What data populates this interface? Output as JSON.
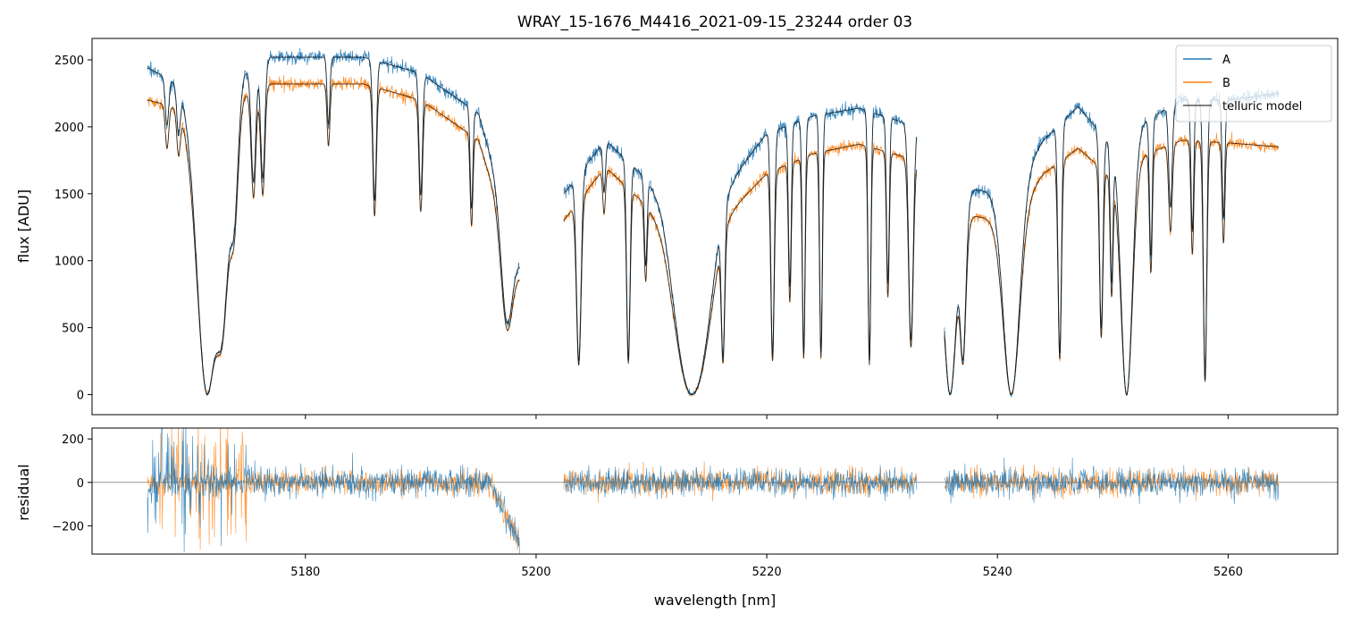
{
  "chart_data": [
    {
      "type": "line",
      "panel": "top",
      "title": "WRAY_15-1676_M4416_2021-09-15_23244  order 03",
      "xlabel": "",
      "ylabel": "flux [ADU]",
      "xlim": [
        5161.5,
        5269.5
      ],
      "ylim": [
        -150,
        2660
      ],
      "yticks": [
        0,
        500,
        1000,
        1500,
        2000,
        2500
      ],
      "xticks": [
        5180,
        5200,
        5220,
        5240,
        5260
      ],
      "legend": {
        "location": "top-right",
        "entries": [
          "A",
          "B",
          "telluric model"
        ]
      },
      "segments": [
        [
          5166.3,
          5198.6
        ],
        [
          5202.4,
          5233.0
        ],
        [
          5235.4,
          5264.4
        ]
      ],
      "continuum": {
        "A": [
          [
            5166.3,
            2440
          ],
          [
            5170,
            2280
          ],
          [
            5175,
            2420
          ],
          [
            5177,
            2520
          ],
          [
            5185,
            2520
          ],
          [
            5190,
            2400
          ],
          [
            5195,
            2100
          ],
          [
            5198.6,
            1000
          ],
          [
            5202.4,
            1500
          ],
          [
            5206,
            1900
          ],
          [
            5211,
            1500
          ],
          [
            5214,
            800
          ],
          [
            5216,
            1500
          ],
          [
            5220,
            1950
          ],
          [
            5224,
            2080
          ],
          [
            5228,
            2140
          ],
          [
            5233,
            2000
          ],
          [
            5235.4,
            1200
          ],
          [
            5238,
            1530
          ],
          [
            5241,
            1500
          ],
          [
            5244,
            1900
          ],
          [
            5247,
            2150
          ],
          [
            5249.5,
            1900
          ],
          [
            5253,
            2050
          ],
          [
            5256,
            2200
          ],
          [
            5260,
            2200
          ],
          [
            5264.4,
            2250
          ]
        ],
        "B": [
          [
            5166.3,
            2200
          ],
          [
            5170,
            2120
          ],
          [
            5175,
            2250
          ],
          [
            5177,
            2320
          ],
          [
            5185,
            2320
          ],
          [
            5190,
            2200
          ],
          [
            5195,
            1900
          ],
          [
            5198.6,
            900
          ],
          [
            5202.4,
            1300
          ],
          [
            5206,
            1700
          ],
          [
            5211,
            1300
          ],
          [
            5214,
            700
          ],
          [
            5216,
            1300
          ],
          [
            5220,
            1650
          ],
          [
            5224,
            1800
          ],
          [
            5228,
            1870
          ],
          [
            5233,
            1750
          ],
          [
            5235.4,
            1100
          ],
          [
            5238,
            1330
          ],
          [
            5241,
            1300
          ],
          [
            5244,
            1650
          ],
          [
            5247,
            1840
          ],
          [
            5249.5,
            1650
          ],
          [
            5253,
            1800
          ],
          [
            5256,
            1900
          ],
          [
            5260,
            1880
          ],
          [
            5264.4,
            1850
          ]
        ]
      },
      "absorption": [
        {
          "center": 5171.5,
          "width": 0.9,
          "depth": 1.05
        },
        {
          "center": 5172.7,
          "width": 0.6,
          "depth": 0.75
        },
        {
          "center": 5173.8,
          "width": 0.35,
          "depth": 0.4
        },
        {
          "center": 5168.0,
          "width": 0.15,
          "depth": 0.15
        },
        {
          "center": 5169.0,
          "width": 0.15,
          "depth": 0.15
        },
        {
          "center": 5175.5,
          "width": 0.2,
          "depth": 0.35
        },
        {
          "center": 5176.3,
          "width": 0.18,
          "depth": 0.35
        },
        {
          "center": 5182.0,
          "width": 0.12,
          "depth": 0.2
        },
        {
          "center": 5186.0,
          "width": 0.15,
          "depth": 0.42
        },
        {
          "center": 5190.0,
          "width": 0.15,
          "depth": 0.38
        },
        {
          "center": 5194.4,
          "width": 0.12,
          "depth": 0.35
        },
        {
          "center": 5197.5,
          "width": 0.5,
          "depth": 0.6
        },
        {
          "center": 5203.7,
          "width": 0.2,
          "depth": 0.85
        },
        {
          "center": 5205.9,
          "width": 0.12,
          "depth": 0.2
        },
        {
          "center": 5208.0,
          "width": 0.15,
          "depth": 0.85
        },
        {
          "center": 5209.5,
          "width": 0.12,
          "depth": 0.4
        },
        {
          "center": 5213.5,
          "width": 1.3,
          "depth": 1.1
        },
        {
          "center": 5216.2,
          "width": 0.15,
          "depth": 0.8
        },
        {
          "center": 5220.5,
          "width": 0.15,
          "depth": 0.85
        },
        {
          "center": 5222.0,
          "width": 0.12,
          "depth": 0.6
        },
        {
          "center": 5223.2,
          "width": 0.12,
          "depth": 0.85
        },
        {
          "center": 5224.7,
          "width": 0.12,
          "depth": 0.85
        },
        {
          "center": 5228.9,
          "width": 0.12,
          "depth": 0.88
        },
        {
          "center": 5230.5,
          "width": 0.12,
          "depth": 0.6
        },
        {
          "center": 5232.5,
          "width": 0.2,
          "depth": 0.8
        },
        {
          "center": 5235.9,
          "width": 0.5,
          "depth": 1.05
        },
        {
          "center": 5237.0,
          "width": 0.25,
          "depth": 0.8
        },
        {
          "center": 5241.2,
          "width": 0.7,
          "depth": 1.05
        },
        {
          "center": 5245.4,
          "width": 0.15,
          "depth": 0.85
        },
        {
          "center": 5249.0,
          "width": 0.15,
          "depth": 0.75
        },
        {
          "center": 5249.9,
          "width": 0.12,
          "depth": 0.55
        },
        {
          "center": 5251.2,
          "width": 0.5,
          "depth": 1.0
        },
        {
          "center": 5253.3,
          "width": 0.12,
          "depth": 0.5
        },
        {
          "center": 5255.0,
          "width": 0.15,
          "depth": 0.35
        },
        {
          "center": 5256.9,
          "width": 0.12,
          "depth": 0.45
        },
        {
          "center": 5258.0,
          "width": 0.15,
          "depth": 0.95
        },
        {
          "center": 5259.6,
          "width": 0.12,
          "depth": 0.4
        }
      ],
      "noise_sigma": {
        "A": 25,
        "B": 22
      }
    },
    {
      "type": "line",
      "panel": "bottom",
      "xlabel": "wavelength [nm]",
      "ylabel": "residual",
      "xlim": [
        5161.5,
        5269.5
      ],
      "ylim": [
        -330,
        250
      ],
      "yticks": [
        -200,
        0,
        200
      ],
      "xticks": [
        5180,
        5200,
        5220,
        5240,
        5260
      ],
      "xtick_labels": [
        "5180",
        "5200",
        "5220",
        "5240",
        "5260"
      ],
      "zero_line": 0,
      "noise_sigma": {
        "A": 32,
        "B": 28
      }
    }
  ],
  "colors": {
    "A": "#1f77b4",
    "B": "#ff7f0e",
    "model": "#000000"
  },
  "legend_labels": {
    "A": "A",
    "B": "B",
    "model": "telluric model"
  },
  "tick_labels_top": {
    "y": [
      "0",
      "500",
      "1000",
      "1500",
      "2000",
      "2500"
    ]
  },
  "tick_labels_bottom": {
    "y": [
      "−200",
      "0",
      "200"
    ]
  }
}
